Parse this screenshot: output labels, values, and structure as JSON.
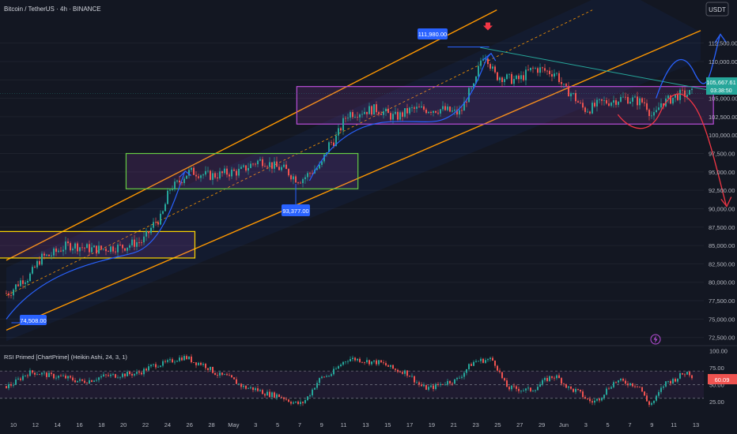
{
  "header": {
    "title": "Bitcoin / TetherUS · 4h · BINANCE",
    "currency": "USDT"
  },
  "price_panel": {
    "current_price": "105,667.61",
    "countdown": "03:38:50",
    "annotations": {
      "low": "74,508.00",
      "mid_low": "93,377.00",
      "high": "111,980.00"
    }
  },
  "rsi_panel": {
    "label": "RSI Primed [ChartPrime] (Heikin Ashi, 24, 3, 1)",
    "value": "60.09"
  },
  "colors": {
    "up": "#26a69a",
    "down": "#ef5350",
    "channel": "#ff9800",
    "box_purple": "#b84ed8",
    "box_green": "#66cc44",
    "box_yellow": "#ffd600",
    "projection_blue": "#2962ff",
    "projection_red": "#f23645",
    "trendline": "#26a69a"
  },
  "chart_data": [
    {
      "type": "candlestick",
      "title": "Bitcoin / TetherUS · 4h · BINANCE",
      "y_axis_ticks": [
        "112,500.00",
        "110,000.00",
        "107,500.00",
        "105,000.00",
        "102,500.00",
        "100,000.00",
        "97,500.00",
        "95,000.00",
        "92,500.00",
        "90,000.00",
        "87,500.00",
        "85,000.00",
        "82,500.00",
        "80,000.00",
        "77,500.00",
        "75,000.00",
        "72,500.00"
      ],
      "y_axis_values": [
        112500,
        110000,
        107500,
        105000,
        102500,
        100000,
        97500,
        95000,
        92500,
        90000,
        87500,
        85000,
        82500,
        80000,
        77500,
        75000,
        72500
      ],
      "x_axis_ticks": [
        "10",
        "12",
        "14",
        "16",
        "18",
        "20",
        "22",
        "24",
        "26",
        "28",
        "May",
        "3",
        "5",
        "7",
        "9",
        "11",
        "13",
        "15",
        "17",
        "19",
        "21",
        "23",
        "25",
        "27",
        "29",
        "Jun",
        "3",
        "5",
        "7",
        "9",
        "11",
        "13"
      ],
      "ylim": [
        71500,
        116000
      ],
      "trend_anchors": [
        {
          "x": 0,
          "y": 78500
        },
        {
          "x": 1.5,
          "y": 80500
        },
        {
          "x": 3,
          "y": 83500
        },
        {
          "x": 5,
          "y": 85000
        },
        {
          "x": 7,
          "y": 84500
        },
        {
          "x": 9,
          "y": 84800
        },
        {
          "x": 10.5,
          "y": 85500
        },
        {
          "x": 12,
          "y": 88500
        },
        {
          "x": 13,
          "y": 93000
        },
        {
          "x": 14.5,
          "y": 95000
        },
        {
          "x": 16,
          "y": 94500
        },
        {
          "x": 18,
          "y": 95000
        },
        {
          "x": 20,
          "y": 96500
        },
        {
          "x": 21.5,
          "y": 95500
        },
        {
          "x": 23,
          "y": 94000
        },
        {
          "x": 24.5,
          "y": 95500
        },
        {
          "x": 25.5,
          "y": 99000
        },
        {
          "x": 27,
          "y": 103000
        },
        {
          "x": 29,
          "y": 103500
        },
        {
          "x": 30.5,
          "y": 102500
        },
        {
          "x": 32,
          "y": 103500
        },
        {
          "x": 34,
          "y": 103500
        },
        {
          "x": 35.5,
          "y": 103000
        },
        {
          "x": 36.5,
          "y": 106000
        },
        {
          "x": 37.5,
          "y": 111000
        },
        {
          "x": 38.5,
          "y": 108000
        },
        {
          "x": 40,
          "y": 107500
        },
        {
          "x": 41.5,
          "y": 109000
        },
        {
          "x": 43,
          "y": 108500
        },
        {
          "x": 44,
          "y": 106000
        },
        {
          "x": 45.5,
          "y": 103500
        },
        {
          "x": 47,
          "y": 104500
        },
        {
          "x": 48.5,
          "y": 105000
        },
        {
          "x": 50,
          "y": 104500
        },
        {
          "x": 50.8,
          "y": 102500
        },
        {
          "x": 51.5,
          "y": 104500
        },
        {
          "x": 53,
          "y": 105500
        },
        {
          "x": 54,
          "y": 105700
        }
      ]
    },
    {
      "type": "line",
      "title": "RSI Primed [ChartPrime] (Heikin Ashi, 24, 3, 1)",
      "y_axis_ticks": [
        "100.00",
        "75.00",
        "50.00",
        "25.00"
      ],
      "y_axis_values": [
        100,
        75,
        50,
        25
      ],
      "ylim": [
        10,
        105
      ],
      "levels": [
        70,
        50,
        30
      ],
      "rsi_anchors": [
        {
          "x": 0,
          "y": 48
        },
        {
          "x": 2,
          "y": 68
        },
        {
          "x": 4,
          "y": 62
        },
        {
          "x": 6,
          "y": 55
        },
        {
          "x": 8,
          "y": 63
        },
        {
          "x": 10,
          "y": 66
        },
        {
          "x": 12,
          "y": 80
        },
        {
          "x": 14,
          "y": 90
        },
        {
          "x": 15,
          "y": 82
        },
        {
          "x": 17,
          "y": 63
        },
        {
          "x": 19,
          "y": 45
        },
        {
          "x": 21,
          "y": 35
        },
        {
          "x": 23,
          "y": 22
        },
        {
          "x": 25,
          "y": 62
        },
        {
          "x": 27,
          "y": 88
        },
        {
          "x": 29,
          "y": 83
        },
        {
          "x": 31,
          "y": 70
        },
        {
          "x": 33,
          "y": 45
        },
        {
          "x": 35,
          "y": 55
        },
        {
          "x": 37,
          "y": 85
        },
        {
          "x": 38,
          "y": 87
        },
        {
          "x": 39.5,
          "y": 45
        },
        {
          "x": 41,
          "y": 42
        },
        {
          "x": 43,
          "y": 62
        },
        {
          "x": 44.5,
          "y": 42
        },
        {
          "x": 46,
          "y": 25
        },
        {
          "x": 48,
          "y": 55
        },
        {
          "x": 49.5,
          "y": 50
        },
        {
          "x": 50.5,
          "y": 22
        },
        {
          "x": 52,
          "y": 55
        },
        {
          "x": 53.5,
          "y": 68
        },
        {
          "x": 54,
          "y": 60
        }
      ]
    }
  ]
}
